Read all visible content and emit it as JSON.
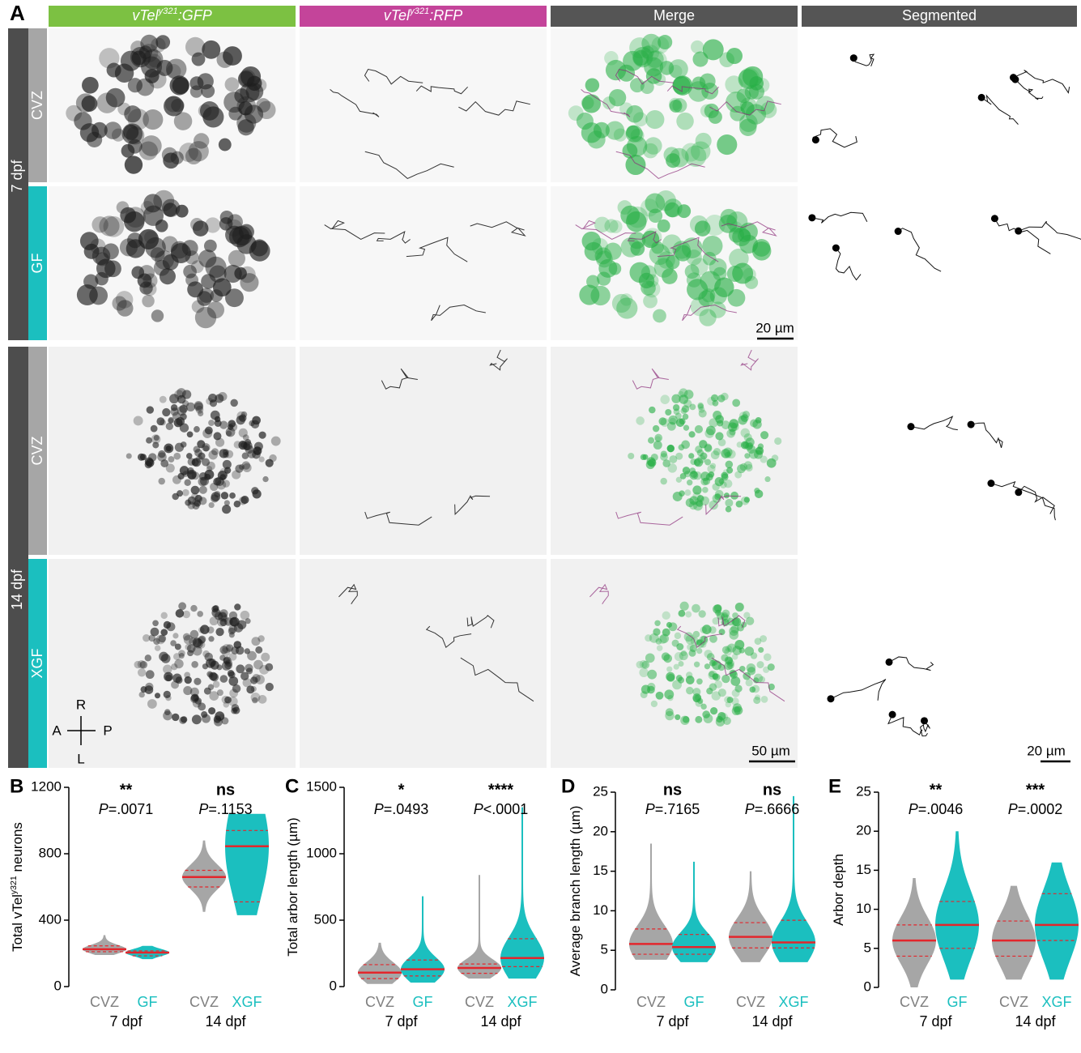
{
  "panel_a": {
    "label": "A",
    "columns": [
      {
        "parts": [
          "vTel",
          "y321",
          ":GFP"
        ],
        "color": "#7cc142"
      },
      {
        "parts": [
          "vTel",
          "y321",
          ":RFP"
        ],
        "color": "#c4449a"
      },
      {
        "parts": [
          "Merge"
        ],
        "color": "#555555"
      },
      {
        "parts": [
          "Segmented"
        ],
        "color": "#555555"
      }
    ],
    "ages": [
      "7 dpf",
      "14 dpf"
    ],
    "conditions": [
      {
        "label": "CVZ",
        "color": "#a6a6a6"
      },
      {
        "label": "GF",
        "color": "#1bbfbf"
      },
      {
        "label": "CVZ",
        "color": "#a6a6a6"
      },
      {
        "label": "XGF",
        "color": "#1bbfbf"
      }
    ],
    "scale_bars": [
      "20 µm",
      "50 µm",
      "20 µm"
    ],
    "orientation": {
      "up": "R",
      "left": "A",
      "right": "P",
      "down": "L"
    }
  },
  "chart_data": [
    {
      "type": "violin",
      "panel_label": "B",
      "ylabel": [
        "Total vTel",
        "y321",
        " neurons"
      ],
      "ylim": [
        0,
        1200
      ],
      "yticks": [
        0,
        400,
        800,
        1200
      ],
      "violins": [
        {
          "name": "CVZ",
          "color": "#a6a6a6",
          "min": 190,
          "q1": 210,
          "median": 225,
          "q3": 245,
          "max": 310
        },
        {
          "name": "GF",
          "color": "#1bbfbf",
          "min": 165,
          "q1": 185,
          "median": 205,
          "q3": 215,
          "max": 245
        },
        {
          "name": "CVZ",
          "color": "#a6a6a6",
          "min": 450,
          "q1": 600,
          "median": 660,
          "q3": 700,
          "max": 880
        },
        {
          "name": "XGF",
          "color": "#1bbfbf",
          "min": 430,
          "q1": 510,
          "median": 845,
          "q3": 940,
          "max": 1040
        }
      ],
      "groups": [
        {
          "label": "7 dpf",
          "stars": "**",
          "p": "P",
          "p_value": "=.0071"
        },
        {
          "label": "14 dpf",
          "stars": "ns",
          "p": "P",
          "p_value": "=.1153"
        }
      ]
    },
    {
      "type": "violin",
      "panel_label": "C",
      "ylabel": [
        "Total arbor length (µm)"
      ],
      "ylim": [
        0,
        1500
      ],
      "yticks": [
        0,
        500,
        1000,
        1500
      ],
      "violins": [
        {
          "name": "CVZ",
          "color": "#a6a6a6",
          "min": 20,
          "q1": 60,
          "median": 105,
          "q3": 165,
          "max": 330
        },
        {
          "name": "GF",
          "color": "#1bbfbf",
          "min": 30,
          "q1": 80,
          "median": 130,
          "q3": 200,
          "max": 680
        },
        {
          "name": "CVZ",
          "color": "#a6a6a6",
          "min": 60,
          "q1": 100,
          "median": 140,
          "q3": 170,
          "max": 840
        },
        {
          "name": "XGF",
          "color": "#1bbfbf",
          "min": 60,
          "q1": 150,
          "median": 215,
          "q3": 360,
          "max": 1350
        }
      ],
      "groups": [
        {
          "label": "7 dpf",
          "stars": "*",
          "p": "P",
          "p_value": "=.0493"
        },
        {
          "label": "14 dpf",
          "stars": "****",
          "p": "P",
          "p_value": "<.0001"
        }
      ]
    },
    {
      "type": "violin",
      "panel_label": "D",
      "ylabel": [
        "Average branch length (µm)"
      ],
      "ylim": [
        0,
        25
      ],
      "yticks": [
        0,
        5,
        10,
        15,
        20,
        25
      ],
      "violins": [
        {
          "name": "CVZ",
          "color": "#a6a6a6",
          "min": 3.8,
          "q1": 4.5,
          "median": 5.8,
          "q3": 7.7,
          "max": 18.5
        },
        {
          "name": "GF",
          "color": "#1bbfbf",
          "min": 3.5,
          "q1": 4.5,
          "median": 5.4,
          "q3": 7.0,
          "max": 16.2
        },
        {
          "name": "CVZ",
          "color": "#a6a6a6",
          "min": 3.5,
          "q1": 5.3,
          "median": 6.7,
          "q3": 8.5,
          "max": 15
        },
        {
          "name": "XGF",
          "color": "#1bbfbf",
          "min": 3.5,
          "q1": 5.3,
          "median": 6.0,
          "q3": 8.8,
          "max": 24.5
        }
      ],
      "groups": [
        {
          "label": "7 dpf",
          "stars": "ns",
          "p": "P",
          "p_value": "=.7165"
        },
        {
          "label": "14 dpf",
          "stars": "ns",
          "p": "P",
          "p_value": "=.6666"
        }
      ]
    },
    {
      "type": "violin",
      "panel_label": "E",
      "ylabel": [
        "Arbor depth"
      ],
      "ylim": [
        0,
        25
      ],
      "yticks": [
        0,
        5,
        10,
        15,
        20,
        25
      ],
      "violins": [
        {
          "name": "CVZ",
          "color": "#a6a6a6",
          "min": 0,
          "q1": 4,
          "median": 6,
          "q3": 8,
          "max": 14
        },
        {
          "name": "GF",
          "color": "#1bbfbf",
          "min": 1,
          "q1": 5,
          "median": 8,
          "q3": 11,
          "max": 20
        },
        {
          "name": "CVZ",
          "color": "#a6a6a6",
          "min": 1,
          "q1": 4,
          "median": 6,
          "q3": 8.5,
          "max": 13
        },
        {
          "name": "XGF",
          "color": "#1bbfbf",
          "min": 1,
          "q1": 6,
          "median": 8,
          "q3": 12,
          "max": 16
        }
      ],
      "groups": [
        {
          "label": "7 dpf",
          "stars": "**",
          "p": "P",
          "p_value": "=.0046"
        },
        {
          "label": "14 dpf",
          "stars": "***",
          "p": "P",
          "p_value": "=.0002"
        }
      ]
    }
  ]
}
